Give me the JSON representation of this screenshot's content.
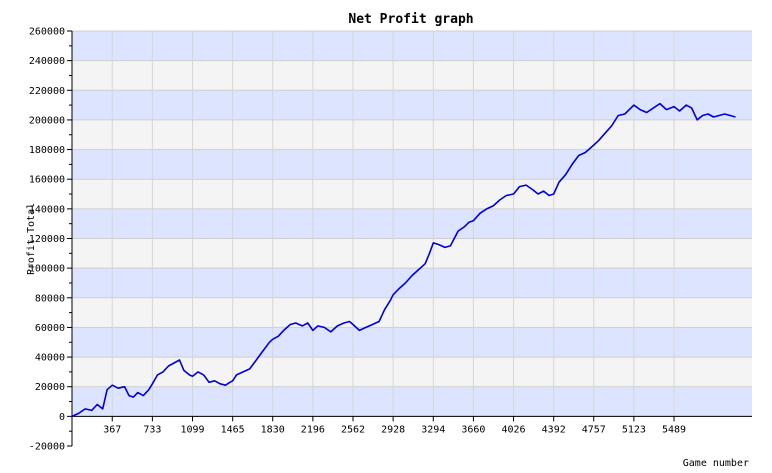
{
  "chart_data": {
    "type": "line",
    "title": "Net Profit graph",
    "xlabel": "Game number",
    "ylabel": "Profit Total",
    "xlim": [
      0,
      6200
    ],
    "ylim": [
      -20000,
      260000
    ],
    "x_ticks": [
      0,
      367,
      733,
      1099,
      1465,
      1830,
      2196,
      2562,
      2928,
      3294,
      3660,
      4026,
      4392,
      4757,
      5123,
      5489
    ],
    "x_tick_labels": [
      "",
      "367",
      "733",
      "1099",
      "1465",
      "1830",
      "2196",
      "2562",
      "2928",
      "3294",
      "3660",
      "4026",
      "4392",
      "4757",
      "5123",
      "5489"
    ],
    "y_ticks": [
      -20000,
      0,
      20000,
      40000,
      60000,
      80000,
      100000,
      120000,
      140000,
      160000,
      180000,
      200000,
      220000,
      240000,
      260000
    ],
    "y_tick_labels": [
      "-20000",
      "0",
      "20000",
      "40000",
      "60000",
      "80000",
      "100000",
      "120000",
      "140000",
      "160000",
      "180000",
      "200000",
      "220000",
      "240000",
      "260000"
    ],
    "grid": true,
    "bands": [
      "#dde4ff",
      "#f4f4f4"
    ],
    "line_color": "#0000dd",
    "series": [
      {
        "x": [
          0,
          60,
          120,
          180,
          230,
          280,
          320,
          367,
          420,
          480,
          520,
          560,
          600,
          650,
          700,
          733,
          780,
          830,
          880,
          930,
          980,
          1020,
          1070,
          1099,
          1150,
          1200,
          1250,
          1300,
          1350,
          1400,
          1440,
          1465,
          1500,
          1560,
          1620,
          1680,
          1740,
          1800,
          1830,
          1880,
          1930,
          1990,
          2040,
          2100,
          2150,
          2196,
          2240,
          2300,
          2360,
          2420,
          2480,
          2530,
          2562,
          2620,
          2680,
          2740,
          2800,
          2850,
          2900,
          2928,
          2980,
          3040,
          3100,
          3160,
          3220,
          3260,
          3294,
          3340,
          3400,
          3450,
          3520,
          3580,
          3620,
          3660,
          3720,
          3780,
          3840,
          3900,
          3960,
          4026,
          4080,
          4140,
          4200,
          4250,
          4300,
          4350,
          4392,
          4440,
          4500,
          4560,
          4620,
          4680,
          4757,
          4800,
          4860,
          4920,
          4980,
          5040,
          5123,
          5180,
          5240,
          5300,
          5360,
          5420,
          5489,
          5540,
          5600,
          5650,
          5700,
          5750,
          5800,
          5850,
          5900,
          5950,
          6000,
          6050
        ],
        "y": [
          0,
          2000,
          5000,
          4000,
          8000,
          5000,
          18000,
          21000,
          19000,
          20000,
          14000,
          13000,
          16000,
          14000,
          18000,
          22000,
          28000,
          30000,
          34000,
          36000,
          38000,
          31000,
          28000,
          27000,
          30000,
          28000,
          23000,
          24000,
          22000,
          21000,
          23000,
          24000,
          28000,
          30000,
          32000,
          38000,
          44000,
          50000,
          52000,
          54000,
          58000,
          62000,
          63000,
          61000,
          63000,
          58000,
          61000,
          60000,
          57000,
          61000,
          63000,
          64000,
          62000,
          58000,
          60000,
          62000,
          64000,
          72000,
          78000,
          82000,
          86000,
          90000,
          95000,
          99000,
          103000,
          110000,
          117000,
          116000,
          114000,
          115000,
          125000,
          128000,
          131000,
          132000,
          137000,
          140000,
          142000,
          146000,
          149000,
          150000,
          155000,
          156000,
          153000,
          150000,
          152000,
          149000,
          150000,
          158000,
          163000,
          170000,
          176000,
          178000,
          183000,
          186000,
          191000,
          196000,
          203000,
          204000,
          210000,
          207000,
          205000,
          208000,
          211000,
          207000,
          209000,
          206000,
          210000,
          208000,
          200000,
          203000,
          204000,
          202000,
          203000,
          204000,
          203000,
          202000
        ]
      }
    ]
  }
}
